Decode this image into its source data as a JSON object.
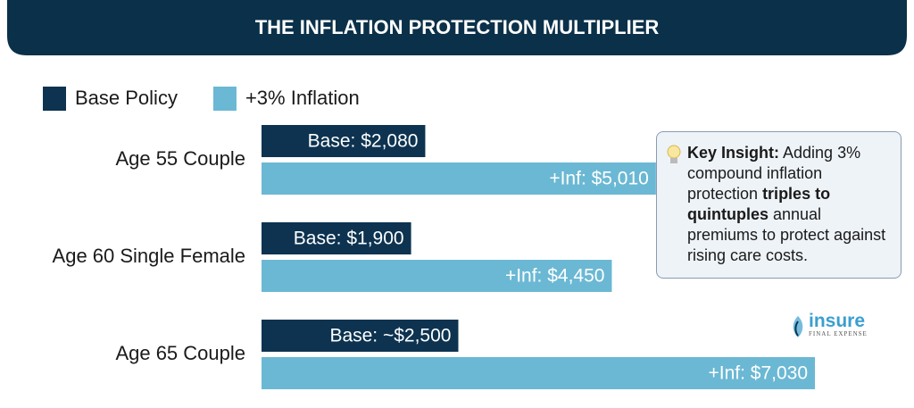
{
  "chart_data": {
    "type": "hbar",
    "title": "THE INFLATION PROTECTION MULTIPLIER",
    "categories": [
      "Age 55 Couple",
      "Age 60 Single Female",
      "Age 65 Couple"
    ],
    "series": [
      {
        "name": "Base Policy",
        "color": "#0d3350",
        "values": [
          2080,
          1900,
          2500
        ],
        "value_labels": [
          "Base: $2,080",
          "Base: $1,900",
          "Base: ~$2,500"
        ]
      },
      {
        "name": "+3% Inflation",
        "color": "#6bb8d4",
        "values": [
          5010,
          4450,
          7030
        ],
        "value_labels": [
          "+Inf: $5,010",
          "+Inf: $4,450",
          "+Inf: $7,030"
        ]
      }
    ],
    "legend": "top-left"
  },
  "insight": {
    "title": "Key Insight:",
    "before": " Adding 3% compound inflation protection ",
    "emphasis": "triples to quintuples",
    "after": " annual premiums to protect against rising care costs."
  },
  "logo": {
    "name": "insure",
    "tagline": "FINAL EXPENSE"
  }
}
